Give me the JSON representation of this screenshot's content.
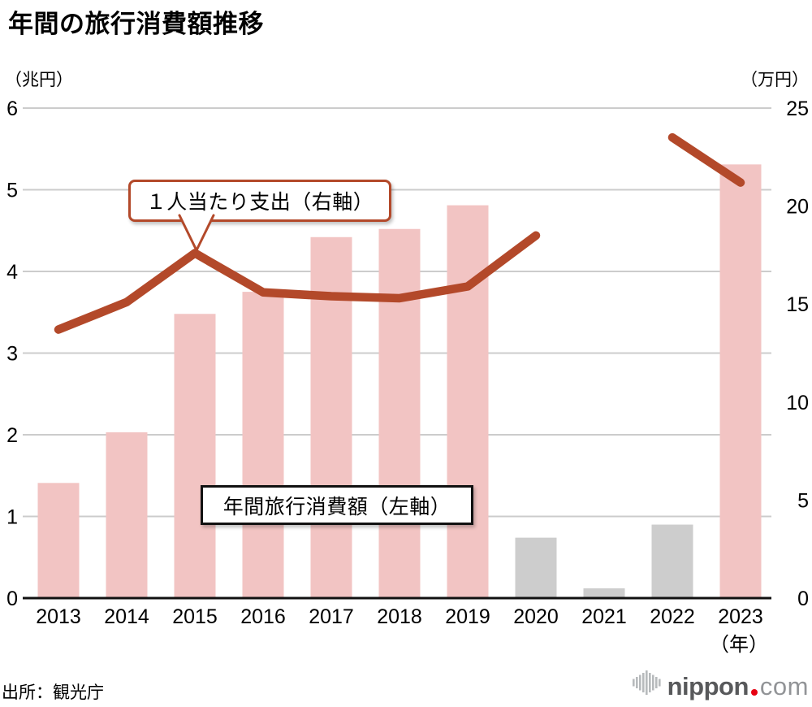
{
  "chart_data": {
    "type": "combo-bar-line",
    "title": "年間の旅行消費額推移",
    "categories": [
      "2013",
      "2014",
      "2015",
      "2016",
      "2017",
      "2018",
      "2019",
      "2020",
      "2021",
      "2022",
      "2023"
    ],
    "x_unit_label": "（年）",
    "left_axis": {
      "unit_label": "（兆円）",
      "range": [
        0,
        6
      ],
      "ticks": [
        6,
        5,
        4,
        3,
        2,
        1,
        0
      ]
    },
    "right_axis": {
      "unit_label": "（万円）",
      "range": [
        0,
        25
      ],
      "ticks": [
        25,
        20,
        15,
        10,
        5,
        0
      ]
    },
    "series": [
      {
        "name": "年間旅行消費額（左軸）",
        "type": "bar",
        "axis": "left",
        "unit": "兆円",
        "values": [
          1.41,
          2.03,
          3.48,
          3.75,
          4.42,
          4.52,
          4.81,
          0.74,
          0.12,
          0.9,
          5.31
        ],
        "muted_categories": [
          "2020",
          "2021",
          "2022"
        ]
      },
      {
        "name": "１人当たり支出（右軸）",
        "type": "line",
        "axis": "right",
        "unit": "万円",
        "values": [
          13.7,
          15.1,
          17.6,
          15.6,
          15.4,
          15.3,
          15.9,
          18.5,
          null,
          23.5,
          21.2
        ]
      }
    ],
    "annotations": {
      "line_label": "１人当たり支出（右軸）",
      "bars_label": "年間旅行消費額（左軸）"
    },
    "grid": "horizontal gridlines at left-axis integer ticks",
    "legend_position": "inline callout labels"
  },
  "source": "出所：観光庁",
  "logo": {
    "brand": "nippon",
    "tld": "com"
  },
  "colors": {
    "bar_pink": "#f2c4c3",
    "bar_muted": "#cdcdcd",
    "line": "#b3492a",
    "grid": "#cccccc",
    "axis": "#111111",
    "text": "#000000",
    "logo_gray": "#58595b",
    "logo_light": "#929497",
    "logo_red": "#e60012"
  }
}
